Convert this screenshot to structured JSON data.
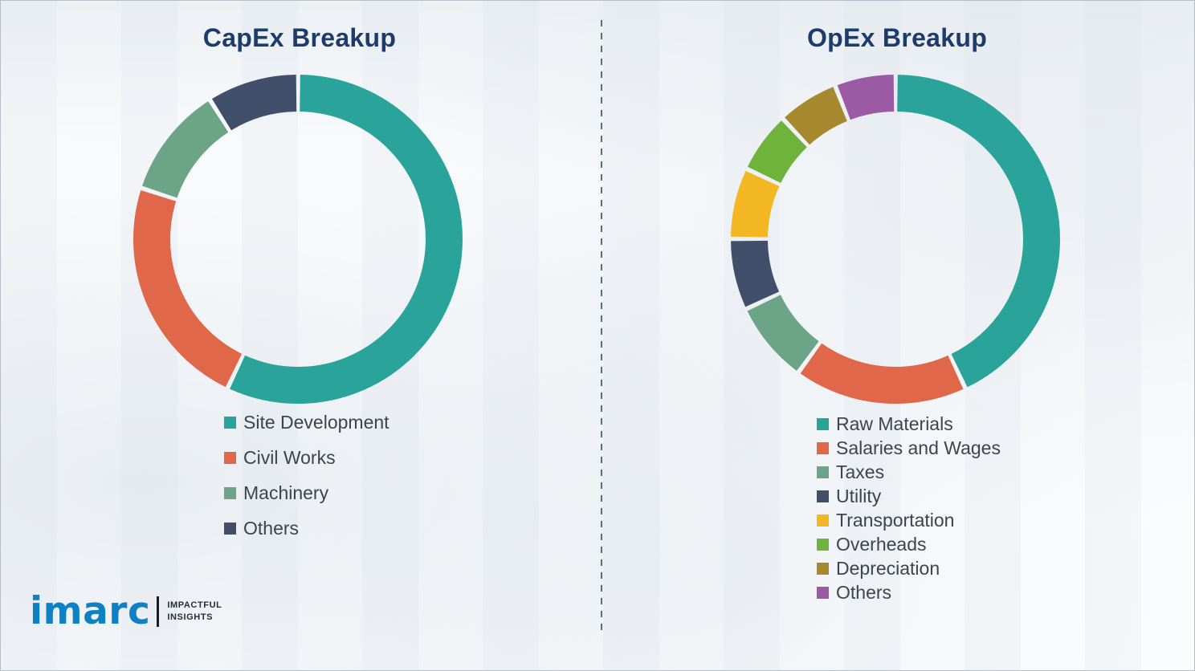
{
  "chart_data": [
    {
      "type": "pie",
      "variant": "donut",
      "title": "CapEx Breakup",
      "categories": [
        "Site Development",
        "Civil Works",
        "Machinery",
        "Others"
      ],
      "values": [
        57,
        23,
        11,
        9
      ],
      "colors": [
        "#2aa49a",
        "#e0674a",
        "#6ba487",
        "#414f6b"
      ],
      "values_unit": "percent (estimated from arc angles, no labels shown)",
      "legend_position": "bottom-left",
      "start_angle_deg": 0,
      "direction": "clockwise"
    },
    {
      "type": "pie",
      "variant": "donut",
      "title": "OpEx Breakup",
      "categories": [
        "Raw Materials",
        "Salaries and Wages",
        "Taxes",
        "Utility",
        "Transportation",
        "Overheads",
        "Depreciation",
        "Others"
      ],
      "values": [
        43,
        17,
        8,
        7,
        7,
        6,
        6,
        6
      ],
      "colors": [
        "#2aa49a",
        "#e0674a",
        "#6ba487",
        "#414f6b",
        "#f2b722",
        "#6db33c",
        "#a6892e",
        "#9c5aa5"
      ],
      "values_unit": "percent (estimated from arc angles, no labels shown)",
      "legend_position": "bottom-left",
      "start_angle_deg": 0,
      "direction": "clockwise"
    }
  ],
  "logo": {
    "brand": "imarc",
    "brand_color": "#0e80c4",
    "tagline_line1": "IMPACTFUL",
    "tagline_line2": "INSIGHTS"
  },
  "style": {
    "title_color": "#1d3c6b",
    "legend_text_color": "#3f4448",
    "background": "#fbfcfd"
  }
}
